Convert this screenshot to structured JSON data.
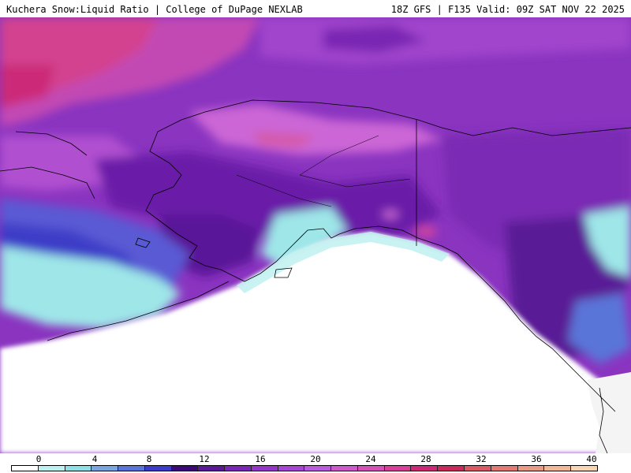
{
  "header": {
    "title": "Kuchera Snow:Liquid Ratio | College of DuPage NEXLAB",
    "run_info": "18Z GFS | F135 Valid: 09Z SAT NOV 22 2025"
  },
  "colorbar": {
    "ticks": [
      "0",
      "4",
      "8",
      "12",
      "16",
      "20",
      "24",
      "28",
      "32",
      "36",
      "40"
    ],
    "min": 0,
    "max": 40,
    "colors": [
      "#ffffff",
      "#bff0f0",
      "#8ee0e6",
      "#7aa6e0",
      "#5a74d8",
      "#3c3cc8",
      "#3c0a78",
      "#5a1a96",
      "#7a28b4",
      "#9636c8",
      "#a846d4",
      "#bc5adc",
      "#cc5acc",
      "#d452b8",
      "#d8409a",
      "#cc2a78",
      "#c82a5c",
      "#d85a64",
      "#e07a74",
      "#e89a84",
      "#f0b898",
      "#f6d4b4"
    ]
  },
  "map": {
    "region": "Alaska / Northeast Pacific",
    "legend_colors": {
      "ocean_ratio_zero": "#ffffff",
      "low_ratio": "#9ee6e8",
      "mid_ratio": "#4a4ad0",
      "high_ratio": "#7a2ab4",
      "very_high_ratio": "#d4449c"
    }
  }
}
